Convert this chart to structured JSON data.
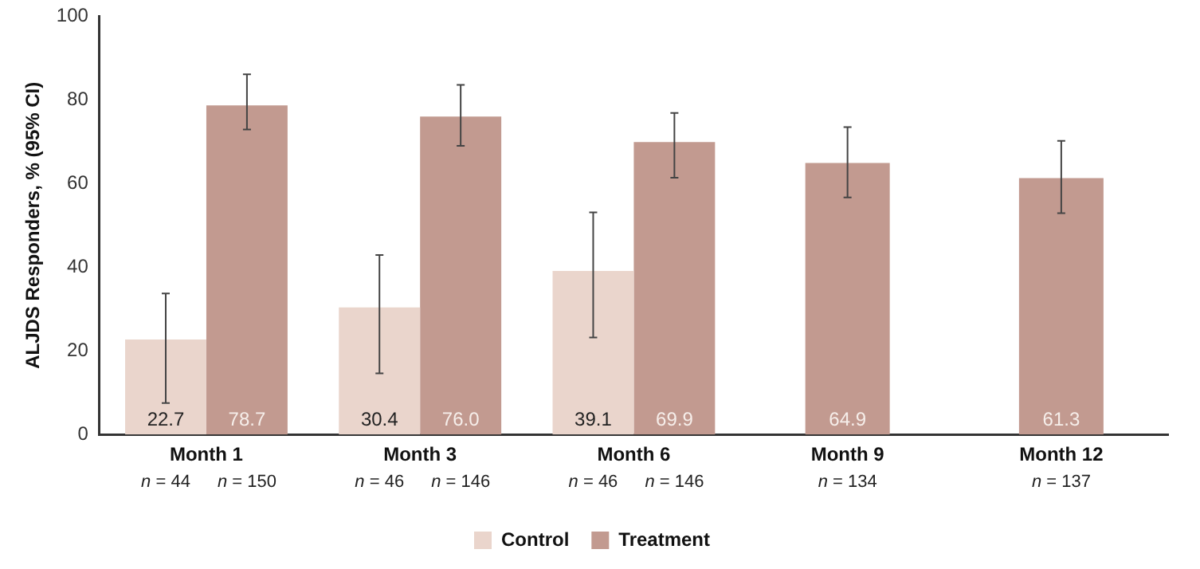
{
  "chart_data": {
    "type": "bar",
    "ylabel": "ALJDS Responders, % (95% CI)",
    "categories": [
      "Month 1",
      "Month 3",
      "Month 6",
      "Month 9",
      "Month 12"
    ],
    "series": [
      {
        "name": "Control",
        "color": "#ead5cc",
        "values": [
          22.7,
          30.4,
          39.1,
          null,
          null
        ],
        "errors": [
          [
            7.5,
            33.7
          ],
          [
            14.6,
            42.9
          ],
          [
            23.2,
            53.1
          ],
          null,
          null
        ],
        "value_labels": [
          "22.7",
          "30.4",
          "39.1",
          null,
          null
        ]
      },
      {
        "name": "Treatment",
        "color": "#c29a90",
        "values": [
          78.7,
          76.0,
          69.9,
          64.9,
          61.3
        ],
        "errors": [
          [
            72.9,
            86.1
          ],
          [
            69.0,
            83.6
          ],
          [
            61.4,
            76.9
          ],
          [
            56.7,
            73.5
          ],
          [
            52.9,
            70.2
          ]
        ],
        "value_labels": [
          "78.7",
          "76.0",
          "69.9",
          "64.9",
          "61.3"
        ]
      }
    ],
    "ylim": [
      0,
      100
    ],
    "yticks": [
      0,
      20,
      40,
      60,
      80,
      100
    ],
    "grid": false,
    "legend": "bottom",
    "annotations": [
      "n = 44",
      "n = 150",
      "n = 46",
      "n = 146",
      "n = 46",
      "n = 146",
      "n = 134",
      "n = 137"
    ]
  }
}
